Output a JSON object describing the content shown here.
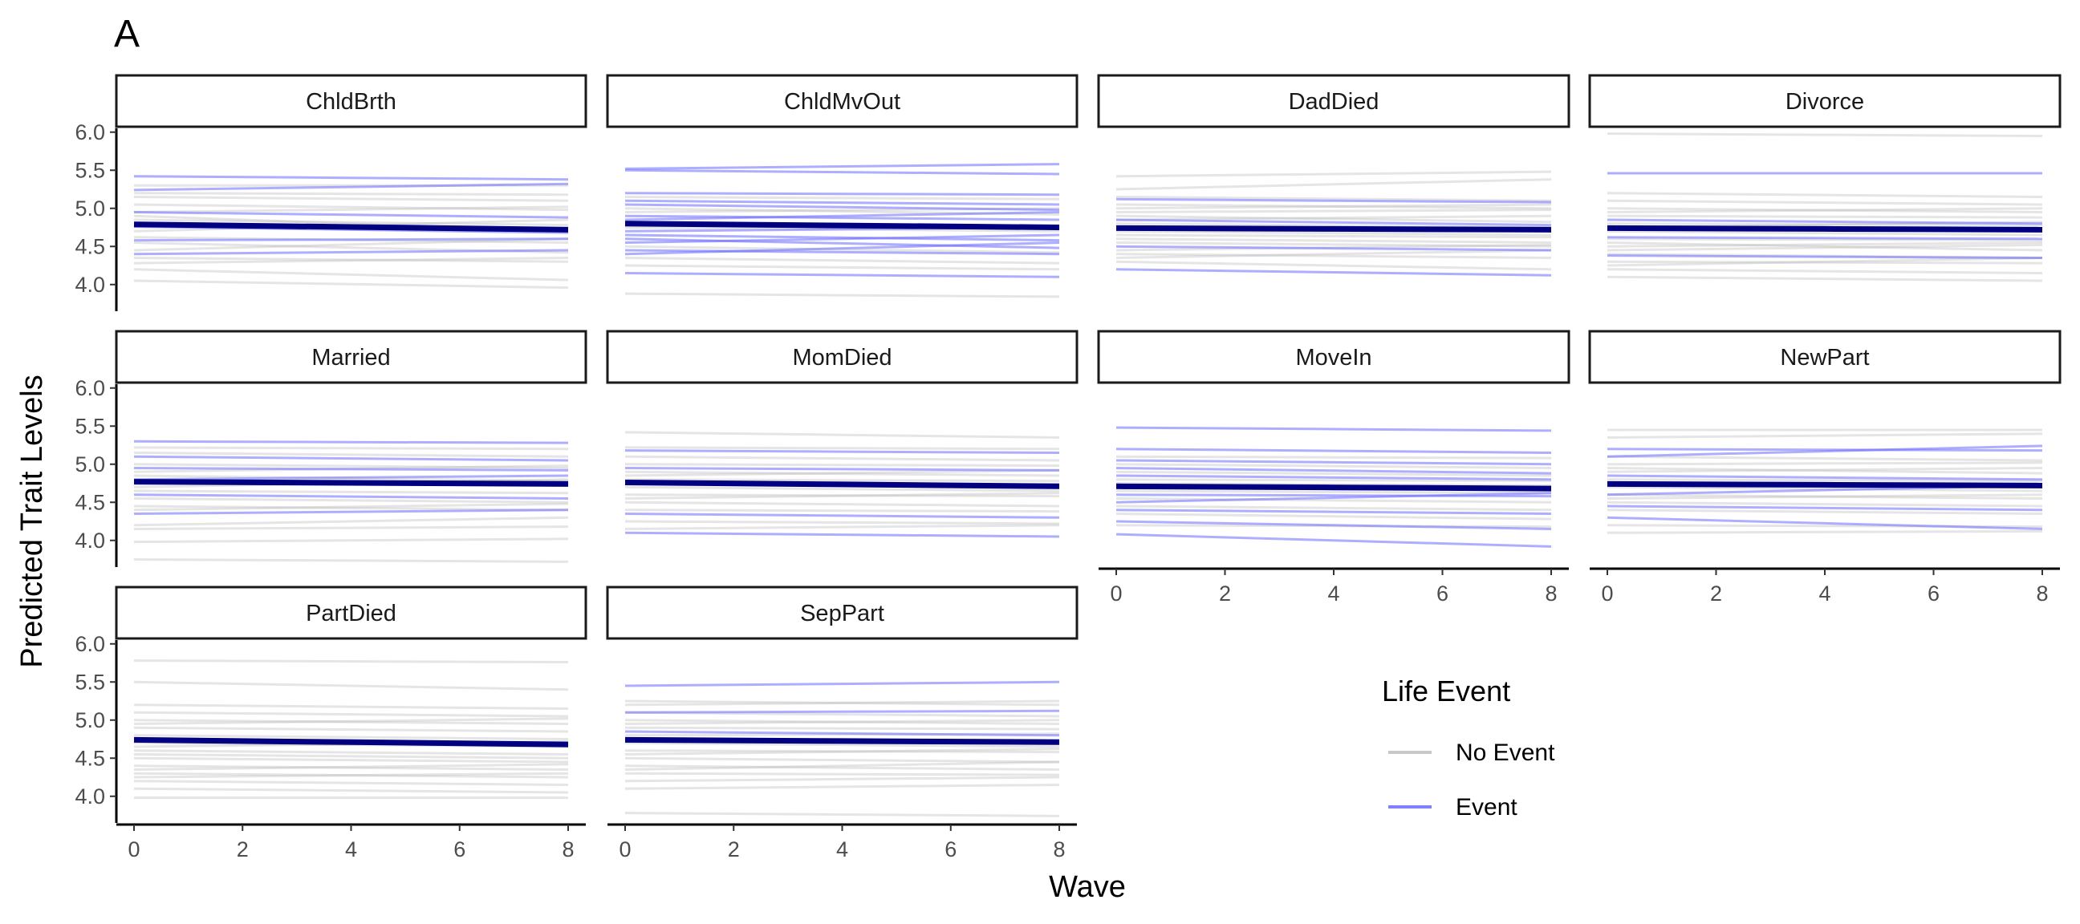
{
  "chart_data": {
    "type": "line",
    "tag": "A",
    "title": "",
    "xlabel": "Wave",
    "ylabel": "Predicted Trait Levels",
    "xlim": [
      0,
      8
    ],
    "ylim": [
      3.65,
      6.05
    ],
    "x_ticks": [
      0,
      2,
      4,
      6,
      8
    ],
    "x_tick_labels": [
      "0",
      "2",
      "4",
      "6",
      "8"
    ],
    "y_ticks": [
      4.0,
      4.5,
      5.0,
      5.5,
      6.0
    ],
    "y_tick_labels": [
      "4.0",
      "4.5",
      "5.0",
      "5.5",
      "6.0"
    ],
    "grid": false,
    "legend": {
      "title": "Life Event",
      "placement": "bottom-right",
      "entries": [
        {
          "label": "No Event",
          "color": "#c8c8c8"
        },
        {
          "label": "Event",
          "color": "#8080ff"
        }
      ]
    },
    "colors": {
      "no_event": "#b4b4b4",
      "event": "#6b6bff",
      "mean": "#000080"
    },
    "panels": [
      {
        "name": "ChldBrth",
        "mean": [
          4.79,
          4.72
        ],
        "event": [
          [
            5.42,
            5.38
          ],
          [
            5.24,
            5.32
          ],
          [
            4.4,
            4.45
          ],
          [
            4.76,
            4.68
          ],
          [
            4.95,
            4.88
          ],
          [
            4.58,
            4.6
          ]
        ],
        "no_event": [
          [
            4.05,
            3.96
          ],
          [
            4.2,
            4.06
          ],
          [
            5.3,
            5.3
          ],
          [
            4.35,
            4.3
          ],
          [
            4.55,
            4.42
          ],
          [
            5.05,
            4.98
          ],
          [
            4.85,
            4.78
          ],
          [
            4.62,
            4.55
          ],
          [
            4.95,
            5.02
          ],
          [
            4.45,
            4.6
          ],
          [
            5.15,
            5.1
          ],
          [
            4.7,
            4.85
          ],
          [
            4.28,
            4.35
          ],
          [
            4.9,
            4.7
          ],
          [
            5.2,
            5.18
          ]
        ]
      },
      {
        "name": "ChldMvOut",
        "mean": [
          4.8,
          4.75
        ],
        "event": [
          [
            5.52,
            5.58
          ],
          [
            5.5,
            5.45
          ],
          [
            4.15,
            4.1
          ],
          [
            4.45,
            4.4
          ],
          [
            4.6,
            4.48
          ],
          [
            4.7,
            4.75
          ],
          [
            4.9,
            4.85
          ],
          [
            5.05,
            4.98
          ],
          [
            5.2,
            5.18
          ],
          [
            4.55,
            4.65
          ],
          [
            4.85,
            4.95
          ],
          [
            4.4,
            4.55
          ],
          [
            5.1,
            5.05
          ],
          [
            4.65,
            4.58
          ]
        ],
        "no_event": [
          [
            3.88,
            3.84
          ],
          [
            4.35,
            4.28
          ],
          [
            4.75,
            4.7
          ],
          [
            5.0,
            4.92
          ],
          [
            4.5,
            4.42
          ],
          [
            5.15,
            5.12
          ],
          [
            4.25,
            4.2
          ],
          [
            4.95,
            5.0
          ]
        ]
      },
      {
        "name": "DadDied",
        "mean": [
          4.74,
          4.72
        ],
        "event": [
          [
            4.2,
            4.12
          ],
          [
            5.12,
            5.08
          ],
          [
            4.5,
            4.45
          ],
          [
            4.85,
            4.78
          ]
        ],
        "no_event": [
          [
            5.42,
            5.48
          ],
          [
            5.25,
            5.38
          ],
          [
            4.3,
            4.2
          ],
          [
            4.4,
            4.35
          ],
          [
            4.55,
            4.5
          ],
          [
            4.65,
            4.62
          ],
          [
            4.75,
            4.72
          ],
          [
            4.85,
            4.9
          ],
          [
            4.95,
            4.98
          ],
          [
            5.05,
            5.0
          ],
          [
            5.15,
            5.1
          ],
          [
            4.6,
            4.55
          ],
          [
            4.45,
            4.52
          ],
          [
            4.7,
            4.65
          ],
          [
            4.9,
            4.82
          ],
          [
            5.0,
            5.05
          ],
          [
            4.35,
            4.45
          ],
          [
            4.8,
            4.75
          ]
        ]
      },
      {
        "name": "Divorce",
        "mean": [
          4.74,
          4.72
        ],
        "event": [
          [
            5.46,
            5.46
          ],
          [
            4.85,
            4.8
          ],
          [
            4.62,
            4.6
          ],
          [
            4.38,
            4.35
          ]
        ],
        "no_event": [
          [
            5.98,
            5.95
          ],
          [
            4.1,
            4.05
          ],
          [
            4.2,
            4.15
          ],
          [
            4.3,
            4.28
          ],
          [
            4.4,
            4.35
          ],
          [
            4.5,
            4.55
          ],
          [
            4.6,
            4.58
          ],
          [
            4.7,
            4.65
          ],
          [
            4.8,
            4.78
          ],
          [
            4.9,
            4.88
          ],
          [
            5.0,
            4.95
          ],
          [
            5.1,
            5.05
          ],
          [
            5.2,
            5.15
          ],
          [
            4.55,
            4.45
          ],
          [
            4.45,
            4.52
          ],
          [
            4.75,
            4.82
          ],
          [
            4.95,
            5.0
          ],
          [
            4.25,
            4.35
          ]
        ]
      },
      {
        "name": "Married",
        "mean": [
          4.77,
          4.74
        ],
        "event": [
          [
            5.3,
            5.28
          ],
          [
            4.95,
            4.92
          ],
          [
            4.6,
            4.55
          ],
          [
            4.35,
            4.4
          ],
          [
            4.8,
            4.85
          ],
          [
            5.1,
            5.05
          ]
        ],
        "no_event": [
          [
            3.75,
            3.72
          ],
          [
            3.98,
            4.02
          ],
          [
            4.15,
            4.18
          ],
          [
            4.2,
            4.3
          ],
          [
            4.45,
            4.4
          ],
          [
            4.55,
            4.5
          ],
          [
            4.65,
            4.62
          ],
          [
            4.7,
            4.8
          ],
          [
            4.85,
            4.78
          ],
          [
            5.0,
            4.95
          ],
          [
            5.15,
            5.1
          ],
          [
            5.22,
            5.2
          ],
          [
            4.4,
            4.48
          ],
          [
            4.9,
            4.98
          ]
        ]
      },
      {
        "name": "MomDied",
        "mean": [
          4.76,
          4.71
        ],
        "event": [
          [
            4.1,
            4.05
          ],
          [
            4.35,
            4.3
          ],
          [
            4.95,
            4.92
          ],
          [
            5.18,
            5.15
          ]
        ],
        "no_event": [
          [
            5.42,
            5.35
          ],
          [
            4.15,
            4.2
          ],
          [
            4.25,
            4.22
          ],
          [
            4.4,
            4.38
          ],
          [
            4.5,
            4.45
          ],
          [
            4.6,
            4.58
          ],
          [
            4.7,
            4.65
          ],
          [
            4.8,
            4.78
          ],
          [
            4.9,
            4.85
          ],
          [
            5.0,
            4.98
          ],
          [
            5.1,
            5.05
          ],
          [
            5.22,
            5.2
          ],
          [
            4.55,
            4.62
          ],
          [
            4.85,
            4.92
          ]
        ]
      },
      {
        "name": "MoveIn",
        "mean": [
          4.71,
          4.68
        ],
        "event": [
          [
            5.48,
            5.44
          ],
          [
            4.08,
            3.92
          ],
          [
            4.25,
            4.15
          ],
          [
            4.4,
            4.35
          ],
          [
            4.6,
            4.58
          ],
          [
            4.85,
            4.8
          ],
          [
            5.05,
            5.0
          ],
          [
            5.2,
            5.15
          ],
          [
            4.5,
            4.62
          ],
          [
            4.95,
            4.88
          ]
        ],
        "no_event": [
          [
            4.2,
            4.18
          ],
          [
            4.35,
            4.28
          ],
          [
            4.55,
            4.5
          ],
          [
            4.65,
            4.62
          ],
          [
            4.75,
            4.72
          ],
          [
            4.9,
            4.85
          ],
          [
            5.0,
            4.95
          ],
          [
            5.1,
            5.08
          ],
          [
            4.45,
            4.4
          ],
          [
            4.8,
            4.78
          ]
        ]
      },
      {
        "name": "NewPart",
        "mean": [
          4.74,
          4.72
        ],
        "event": [
          [
            5.1,
            5.24
          ],
          [
            5.2,
            5.18
          ],
          [
            4.3,
            4.15
          ],
          [
            4.45,
            4.4
          ],
          [
            4.85,
            4.8
          ],
          [
            4.6,
            4.72
          ]
        ],
        "no_event": [
          [
            5.45,
            5.45
          ],
          [
            5.35,
            5.4
          ],
          [
            4.1,
            4.12
          ],
          [
            4.2,
            4.18
          ],
          [
            4.4,
            4.35
          ],
          [
            4.5,
            4.45
          ],
          [
            4.6,
            4.55
          ],
          [
            4.7,
            4.65
          ],
          [
            4.8,
            4.78
          ],
          [
            4.9,
            4.95
          ],
          [
            5.0,
            5.02
          ],
          [
            5.1,
            5.05
          ],
          [
            4.55,
            4.6
          ],
          [
            4.95,
            4.88
          ]
        ]
      },
      {
        "name": "PartDied",
        "mean": [
          4.74,
          4.68
        ],
        "event": [],
        "no_event": [
          [
            5.78,
            5.76
          ],
          [
            5.5,
            5.4
          ],
          [
            3.98,
            3.98
          ],
          [
            4.1,
            4.05
          ],
          [
            4.2,
            4.15
          ],
          [
            4.3,
            4.25
          ],
          [
            4.4,
            4.35
          ],
          [
            4.5,
            4.45
          ],
          [
            4.6,
            4.55
          ],
          [
            4.7,
            4.65
          ],
          [
            4.8,
            4.75
          ],
          [
            4.9,
            4.85
          ],
          [
            5.0,
            4.95
          ],
          [
            5.1,
            5.05
          ],
          [
            5.2,
            5.15
          ],
          [
            4.35,
            4.42
          ],
          [
            4.65,
            4.72
          ],
          [
            4.95,
            5.02
          ],
          [
            4.25,
            4.3
          ],
          [
            4.55,
            4.5
          ]
        ]
      },
      {
        "name": "SepPart",
        "mean": [
          4.74,
          4.71
        ],
        "event": [
          [
            5.45,
            5.5
          ],
          [
            5.1,
            5.12
          ],
          [
            4.75,
            4.7
          ],
          [
            4.85,
            4.8
          ]
        ],
        "no_event": [
          [
            3.78,
            3.74
          ],
          [
            4.1,
            4.15
          ],
          [
            4.2,
            4.25
          ],
          [
            4.3,
            4.28
          ],
          [
            4.4,
            4.35
          ],
          [
            4.5,
            4.45
          ],
          [
            4.6,
            4.58
          ],
          [
            4.7,
            4.65
          ],
          [
            4.8,
            4.82
          ],
          [
            4.9,
            4.88
          ],
          [
            5.0,
            4.95
          ],
          [
            5.1,
            5.05
          ],
          [
            5.2,
            5.25
          ],
          [
            4.35,
            4.45
          ],
          [
            4.55,
            4.62
          ],
          [
            4.95,
            5.0
          ],
          [
            5.25,
            5.2
          ]
        ]
      }
    ]
  }
}
